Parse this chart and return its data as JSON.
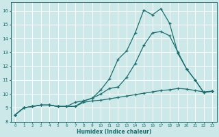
{
  "xlabel": "Humidex (Indice chaleur)",
  "bg_color": "#cce8e8",
  "grid_color": "#ffffff",
  "line_color": "#1a6e6e",
  "xlim": [
    -0.5,
    23.5
  ],
  "ylim": [
    8.0,
    16.6
  ],
  "yticks": [
    8,
    9,
    10,
    11,
    12,
    13,
    14,
    15,
    16
  ],
  "xticks": [
    0,
    1,
    2,
    3,
    4,
    5,
    6,
    7,
    8,
    9,
    10,
    11,
    12,
    13,
    14,
    15,
    16,
    17,
    18,
    19,
    20,
    21,
    22,
    23
  ],
  "line1_x": [
    0,
    1,
    2,
    3,
    4,
    5,
    6,
    7,
    8,
    9,
    10,
    11,
    12,
    13,
    14,
    15,
    16,
    17,
    18,
    19,
    20,
    21,
    22,
    23
  ],
  "line1_y": [
    8.5,
    9.0,
    9.1,
    9.2,
    9.2,
    9.1,
    9.1,
    9.4,
    9.5,
    9.7,
    10.3,
    11.1,
    12.5,
    13.1,
    14.4,
    16.05,
    15.7,
    16.15,
    15.1,
    12.9,
    11.8,
    11.0,
    10.1,
    10.2
  ],
  "line2_x": [
    0,
    1,
    2,
    3,
    4,
    5,
    6,
    7,
    8,
    9,
    10,
    11,
    12,
    13,
    14,
    15,
    16,
    17,
    18,
    19,
    20,
    21,
    22,
    23
  ],
  "line2_y": [
    8.5,
    9.0,
    9.1,
    9.2,
    9.2,
    9.1,
    9.1,
    9.1,
    9.5,
    9.7,
    10.0,
    10.4,
    10.5,
    11.2,
    12.2,
    13.5,
    14.4,
    14.5,
    14.2,
    13.0,
    11.8,
    11.0,
    10.1,
    10.2
  ],
  "line3_x": [
    0,
    1,
    2,
    3,
    4,
    5,
    6,
    7,
    8,
    9,
    10,
    11,
    12,
    13,
    14,
    15,
    16,
    17,
    18,
    19,
    20,
    21,
    22,
    23
  ],
  "line3_y": [
    8.5,
    9.0,
    9.1,
    9.2,
    9.2,
    9.1,
    9.1,
    9.1,
    9.4,
    9.5,
    9.55,
    9.65,
    9.75,
    9.85,
    9.95,
    10.05,
    10.15,
    10.25,
    10.3,
    10.4,
    10.35,
    10.25,
    10.15,
    10.2
  ]
}
